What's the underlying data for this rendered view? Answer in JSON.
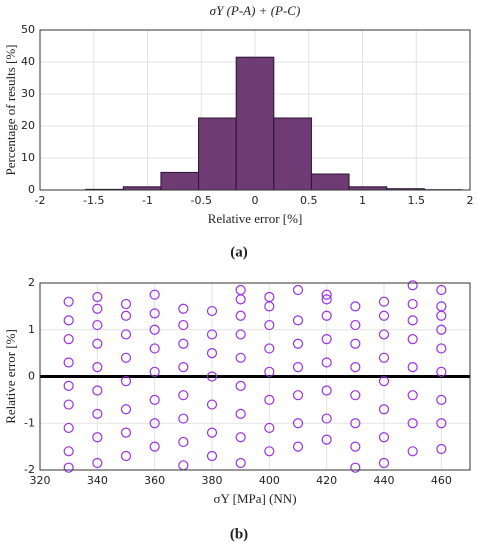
{
  "chart_data": [
    {
      "type": "histogram",
      "title": "σY (P-A) + (P-C)",
      "xlabel": "Relative error [%]",
      "ylabel": "Percentage of results [%]",
      "caption": "(a)",
      "bins": [
        -1.925,
        -1.575,
        -1.225,
        -0.875,
        -0.525,
        -0.175,
        0.175,
        0.525,
        0.875,
        1.225,
        1.575,
        1.925
      ],
      "values": [
        0,
        0.2,
        1,
        5.5,
        22.5,
        41.5,
        22.5,
        5,
        1,
        0.4,
        0.1
      ],
      "color": "#6e3b74",
      "edgecolor": "#2a1530",
      "xlim": [
        -2,
        2
      ],
      "xticks": [
        -2,
        -1.5,
        -1,
        -0.5,
        0,
        0.5,
        1,
        1.5,
        2
      ],
      "ylim": [
        0,
        50
      ],
      "yticks": [
        0,
        10,
        20,
        30,
        40,
        50
      ],
      "grid": true
    },
    {
      "type": "scatter",
      "xlabel": "σY [MPa] (NN)",
      "ylabel": "Relative error [%]",
      "caption": "(b)",
      "x": [
        330,
        330,
        330,
        330,
        330,
        330,
        330,
        330,
        330,
        340,
        340,
        340,
        340,
        340,
        340,
        340,
        340,
        340,
        350,
        350,
        350,
        350,
        350,
        350,
        350,
        350,
        360,
        360,
        360,
        360,
        360,
        360,
        360,
        360,
        370,
        370,
        370,
        370,
        370,
        370,
        370,
        370,
        380,
        380,
        380,
        380,
        380,
        380,
        380,
        390,
        390,
        390,
        390,
        390,
        390,
        390,
        390,
        390,
        400,
        400,
        400,
        400,
        400,
        400,
        400,
        400,
        410,
        410,
        410,
        410,
        410,
        410,
        410,
        420,
        420,
        420,
        420,
        420,
        420,
        420,
        420,
        430,
        430,
        430,
        430,
        430,
        430,
        430,
        430,
        440,
        440,
        440,
        440,
        440,
        440,
        440,
        440,
        450,
        450,
        450,
        450,
        450,
        450,
        450,
        450,
        460,
        460,
        460,
        460,
        460,
        460,
        460,
        460,
        460
      ],
      "y": [
        -1.95,
        -1.6,
        -1.1,
        -0.6,
        -0.2,
        0.3,
        0.8,
        1.2,
        1.6,
        -1.85,
        -1.3,
        -0.8,
        -0.3,
        0.2,
        0.7,
        1.1,
        1.45,
        1.7,
        -1.7,
        -1.2,
        -0.7,
        -0.1,
        0.4,
        0.9,
        1.3,
        1.55,
        -1.5,
        -1.0,
        -0.5,
        0.1,
        0.6,
        1.0,
        1.35,
        1.75,
        -1.9,
        -1.4,
        -0.9,
        -0.4,
        0.2,
        0.7,
        1.1,
        1.45,
        -1.7,
        -1.2,
        -0.6,
        0,
        0.5,
        0.9,
        1.4,
        -1.85,
        -1.3,
        -0.8,
        -0.2,
        0.4,
        0.9,
        1.3,
        1.65,
        1.85,
        -1.6,
        -1.1,
        -0.5,
        0.1,
        0.6,
        1.1,
        1.5,
        1.7,
        -1.5,
        -1.0,
        -0.4,
        0.2,
        0.7,
        1.2,
        1.85,
        -1.35,
        -0.9,
        -0.3,
        0.3,
        0.8,
        1.3,
        1.65,
        1.75,
        -1.95,
        -1.5,
        -1.0,
        -0.4,
        0.2,
        0.7,
        1.1,
        1.5,
        -1.85,
        -1.3,
        -0.7,
        -0.1,
        0.4,
        0.9,
        1.3,
        1.6,
        -1.6,
        -1.0,
        -0.4,
        0.2,
        0.8,
        1.2,
        1.55,
        1.95,
        -1.55,
        -1.0,
        -0.5,
        0.1,
        0.6,
        1.0,
        1.3,
        1.5,
        1.85
      ],
      "color": "#9b30e6",
      "reference_line": 0,
      "xlim": [
        320,
        470
      ],
      "xticks": [
        320,
        340,
        360,
        380,
        400,
        420,
        440,
        460
      ],
      "ylim": [
        -2,
        2
      ],
      "yticks": [
        -2,
        -1,
        0,
        1,
        2
      ],
      "grid": true
    }
  ]
}
